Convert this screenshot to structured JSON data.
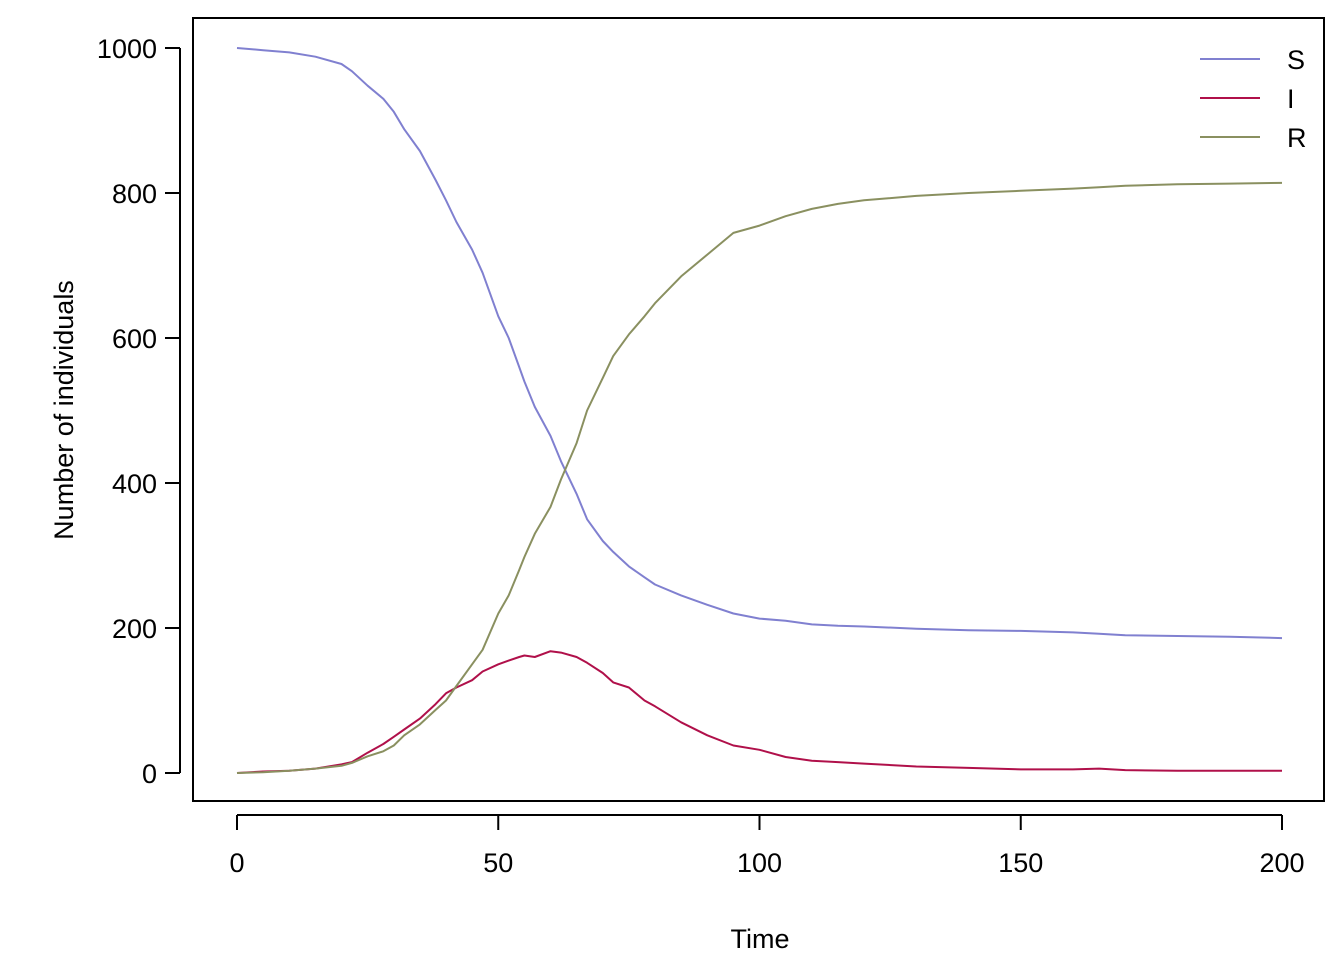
{
  "chart_data": {
    "type": "line",
    "title": "",
    "xlabel": "Time",
    "ylabel": "Number of individuals",
    "xlim": [
      0,
      200
    ],
    "ylim": [
      0,
      1000
    ],
    "x_ticks": [
      0,
      50,
      100,
      150,
      200
    ],
    "y_ticks": [
      0,
      200,
      400,
      600,
      800,
      1000
    ],
    "x_tick_labels": [
      "0",
      "50",
      "100",
      "150",
      "200"
    ],
    "y_tick_labels": [
      "0",
      "200",
      "400",
      "600",
      "800",
      "1000"
    ],
    "grid": false,
    "legend_position": "top-right",
    "x": [
      0,
      5,
      10,
      15,
      20,
      22,
      25,
      28,
      30,
      32,
      35,
      38,
      40,
      42,
      45,
      47,
      50,
      52,
      54,
      55,
      57,
      60,
      62,
      65,
      67,
      70,
      72,
      75,
      78,
      80,
      85,
      90,
      95,
      100,
      105,
      110,
      115,
      120,
      130,
      140,
      150,
      160,
      165,
      170,
      180,
      190,
      200
    ],
    "series": [
      {
        "name": "S",
        "color": "#8080d0",
        "values": [
          1000,
          997,
          994,
          988,
          978,
          968,
          948,
          930,
          912,
          888,
          858,
          818,
          790,
          760,
          722,
          690,
          630,
          600,
          560,
          540,
          505,
          465,
          430,
          385,
          350,
          320,
          305,
          285,
          270,
          260,
          245,
          232,
          220,
          213,
          210,
          205,
          203,
          202,
          199,
          197,
          196,
          194,
          192,
          190,
          189,
          188,
          186
        ]
      },
      {
        "name": "I",
        "color": "#b0104a",
        "values": [
          0,
          2,
          3,
          6,
          12,
          15,
          28,
          40,
          50,
          60,
          75,
          95,
          110,
          118,
          128,
          140,
          150,
          155,
          160,
          162,
          160,
          168,
          166,
          160,
          152,
          138,
          125,
          118,
          100,
          92,
          70,
          52,
          38,
          32,
          22,
          17,
          15,
          13,
          9,
          7,
          5,
          5,
          6,
          4,
          3,
          3,
          3
        ]
      },
      {
        "name": "R",
        "color": "#8a9060",
        "values": [
          0,
          1,
          3,
          6,
          10,
          14,
          23,
          30,
          38,
          52,
          67,
          87,
          100,
          120,
          150,
          170,
          220,
          245,
          280,
          298,
          330,
          367,
          405,
          455,
          500,
          545,
          575,
          605,
          630,
          648,
          685,
          715,
          745,
          755,
          768,
          778,
          785,
          790,
          796,
          800,
          803,
          806,
          808,
          810,
          812,
          813,
          814
        ]
      }
    ]
  }
}
